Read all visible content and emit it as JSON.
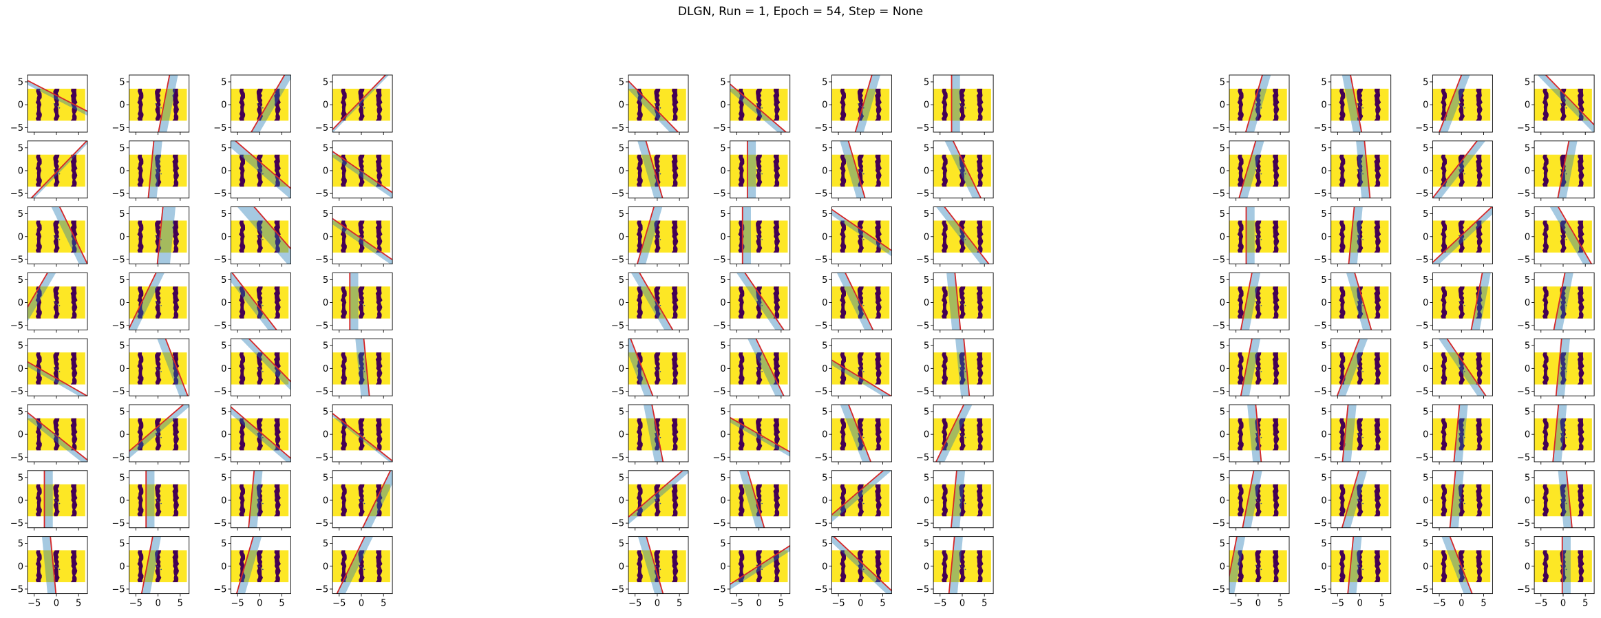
{
  "figure": {
    "title": "DLGN, Run = 1, Epoch = 54, Step = None",
    "layout": {
      "groups": 3,
      "rows": 8,
      "cols_per_group": 4
    }
  },
  "chart_data": {
    "type": "scatter",
    "title": "DLGN, Run = 1, Epoch = 54, Step = None",
    "xlabel": "",
    "ylabel": "",
    "xlim": [
      -6.5,
      7.0
    ],
    "ylim": [
      -6.0,
      6.5
    ],
    "x_ticks": [
      -5,
      0,
      5
    ],
    "y_ticks": [
      -5,
      0,
      5
    ],
    "grid": false,
    "legend": "none",
    "data": {
      "x_range": [
        -6.5,
        6.5
      ],
      "y_range": [
        -3.5,
        3.5
      ],
      "classes": [
        {
          "label": 0,
          "color": "#440154",
          "x_bands": [
            [
              -4.5,
              -3.5
            ],
            [
              -0.5,
              0.5
            ],
            [
              3.5,
              4.5
            ]
          ]
        },
        {
          "label": 1,
          "color": "#fde725",
          "x_bands": [
            [
              -6.5,
              -4.5
            ],
            [
              -3.5,
              -0.5
            ],
            [
              0.5,
              3.5
            ],
            [
              4.5,
              6.5
            ]
          ]
        }
      ],
      "secondary_points_color": "#3b528b"
    },
    "overlays": {
      "gate_line_color": "#d62728",
      "active_region_color": "#1f77b4",
      "active_region_alpha": 0.4
    },
    "panels": [
      [
        -2.0,
        3.2,
        1.0
      ],
      [
        0.2,
        2.2,
        1.0
      ],
      [
        0.6,
        2.6,
        1.0
      ],
      [
        1.0,
        -0.7,
        0.4
      ],
      [
        1.0,
        0.7,
        0.4
      ],
      [
        0.1,
        -0.7,
        1.0
      ],
      [
        -1.2,
        1.0,
        1.5
      ],
      [
        -1.5,
        -1.1,
        1.0
      ],
      [
        -0.5,
        3.1,
        1.0
      ],
      [
        0.1,
        1.8,
        1.5
      ],
      [
        -0.9,
        2.8,
        2.0
      ],
      [
        -1.5,
        -1.5,
        1.0
      ],
      [
        0.6,
        -5.0,
        1.0
      ],
      [
        0.5,
        -2.8,
        1.0
      ],
      [
        -0.8,
        -1.9,
        1.0
      ],
      [
        0.0,
        -1.7,
        1.0
      ],
      [
        -1.8,
        -4.8,
        1.0
      ],
      [
        -0.4,
        3.4,
        1.0
      ],
      [
        -1.0,
        3.2,
        1.0
      ],
      [
        -0.1,
        0.3,
        1.0
      ],
      [
        -1.3,
        -1.2,
        1.0
      ],
      [
        1.2,
        -1.2,
        1.0
      ],
      [
        -1.2,
        -0.2,
        1.0
      ],
      [
        -1.3,
        -1.0,
        0.5
      ],
      [
        0.0,
        -1.8,
        1.0
      ],
      [
        0.0,
        -1.8,
        1.0
      ],
      [
        0.1,
        -1.0,
        1.0
      ],
      [
        0.5,
        4.2,
        1.0
      ],
      [
        -0.1,
        -1.6,
        1.0
      ],
      [
        0.2,
        -1.6,
        1.0
      ],
      [
        0.3,
        -2.5,
        1.0
      ],
      [
        0.5,
        -1.6,
        1.0
      ],
      [
        -1.0,
        -2.2,
        1.0
      ],
      [
        -1.2,
        -2.0,
        1.0
      ],
      [
        0.3,
        1.5,
        1.0
      ],
      [
        0.0,
        -1.5,
        1.0
      ],
      [
        -0.3,
        -1.5,
        1.0
      ],
      [
        0.0,
        -1.7,
        1.0
      ],
      [
        -0.3,
        -1.7,
        1.0
      ],
      [
        -0.5,
        0.3,
        1.0
      ],
      [
        0.3,
        -1.8,
        1.0
      ],
      [
        0.0,
        -2.8,
        1.0
      ],
      [
        -1.5,
        1.5,
        1.0
      ],
      [
        -0.8,
        0.3,
        1.0
      ],
      [
        -0.6,
        -1.0,
        1.0
      ],
      [
        -0.7,
        0.5,
        1.0
      ],
      [
        -0.5,
        -1.1,
        1.0
      ],
      [
        -0.1,
        -1.9,
        1.0
      ],
      [
        -0.4,
        -4.3,
        1.0
      ],
      [
        -0.5,
        1.7,
        1.0
      ],
      [
        -1.7,
        -4.3,
        1.0
      ],
      [
        -0.1,
        0.1,
        1.0
      ],
      [
        -0.2,
        -0.8,
        1.0
      ],
      [
        -1.8,
        -0.8,
        1.0
      ],
      [
        -0.4,
        -1.0,
        1.0
      ],
      [
        0.5,
        -2.0,
        1.0
      ],
      [
        1.2,
        -1.2,
        1.0
      ],
      [
        -0.3,
        -1.5,
        1.0
      ],
      [
        1.2,
        -1.8,
        1.0
      ],
      [
        0.1,
        -1.0,
        1.0
      ],
      [
        -0.3,
        -1.4,
        1.0
      ],
      [
        1.6,
        0.7,
        1.0
      ],
      [
        -1.1,
        0.2,
        1.0
      ],
      [
        0.1,
        -1.5,
        1.0
      ],
      [
        0.3,
        -0.1,
        1.0
      ],
      [
        -0.2,
        -1.7,
        1.0
      ],
      [
        0.4,
        -1.7,
        1.0
      ],
      [
        -1.0,
        1.7,
        1.0
      ],
      [
        0.3,
        -1.6,
        1.0
      ],
      [
        -0.1,
        0.8,
        1.0
      ],
      [
        0.8,
        -0.8,
        1.0
      ],
      [
        0.2,
        0.9,
        1.0
      ],
      [
        0.0,
        -1.8,
        1.0
      ],
      [
        0.1,
        -1.0,
        1.0
      ],
      [
        1.1,
        0.6,
        1.0
      ],
      [
        -0.6,
        1.9,
        1.0
      ],
      [
        0.2,
        -1.8,
        1.0
      ],
      [
        -0.3,
        -0.1,
        1.0
      ],
      [
        0.2,
        4.3,
        1.0
      ],
      [
        0.2,
        0.0,
        1.0
      ],
      [
        0.2,
        -1.8,
        1.0
      ],
      [
        0.4,
        -1.8,
        1.0
      ],
      [
        -0.7,
        0.4,
        1.0
      ],
      [
        0.1,
        -0.1,
        1.0
      ],
      [
        -0.1,
        -0.8,
        1.0
      ],
      [
        0.1,
        -2.4,
        1.0
      ],
      [
        0.1,
        -0.2,
        1.0
      ],
      [
        0.1,
        -0.8,
        1.0
      ],
      [
        0.2,
        -1.4,
        1.0
      ],
      [
        0.3,
        -1.3,
        1.0
      ],
      [
        0.1,
        -1.1,
        1.0
      ],
      [
        -0.1,
        0.5,
        1.0
      ],
      [
        0.2,
        -5.2,
        1.0
      ],
      [
        0.1,
        -1.2,
        1.0
      ],
      [
        -0.4,
        -0.9,
        1.0
      ],
      [
        0.0,
        0.7,
        1.0
      ]
    ]
  }
}
